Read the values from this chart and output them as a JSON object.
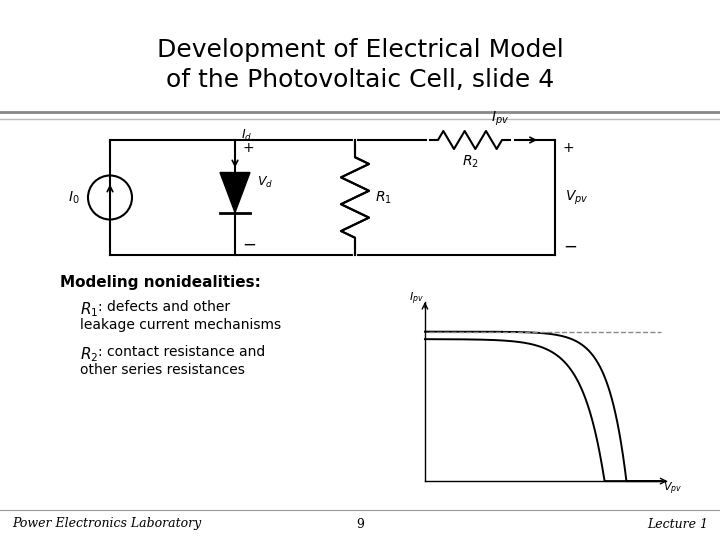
{
  "title_line1": "Development of Electrical Model",
  "title_line2": "of the Photovoltaic Cell, slide 4",
  "title_fontsize": 18,
  "text_modeling": "Modeling nonidealities:",
  "text_r1_label": "$R_1$",
  "text_r1_body": " : defects and other\n   leakage current mechanisms",
  "text_r2_label": "$R_2$",
  "text_r2_body": " : contact resistance and\n   other series resistances",
  "footer_left": "Power Electronics Laboratory",
  "footer_center": "9",
  "footer_right": "Lecture 1",
  "footer_fontsize": 9
}
